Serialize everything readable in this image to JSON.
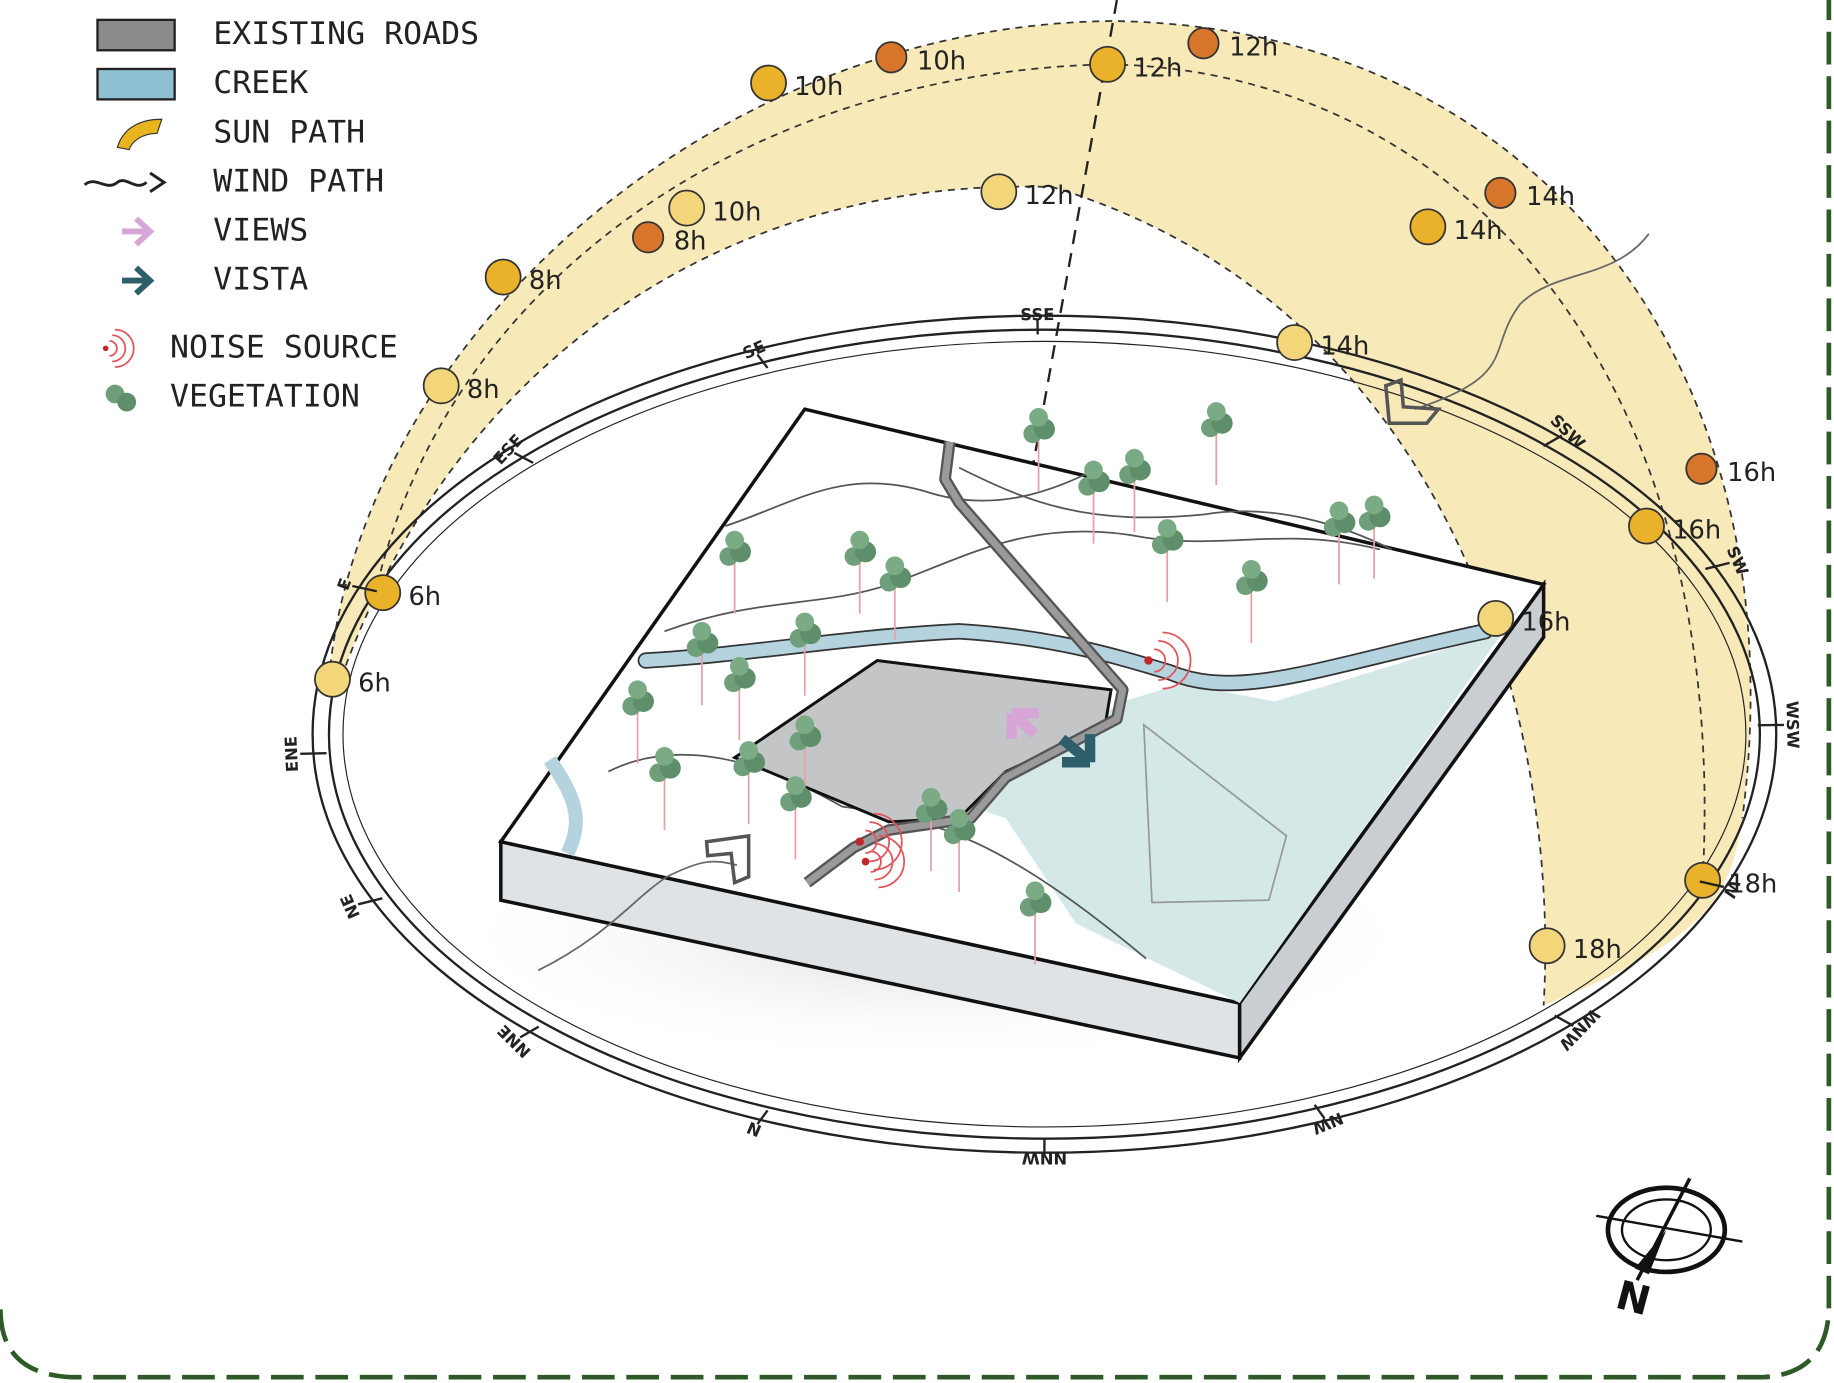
{
  "legend": [
    {
      "label": "EXISTING ROADS"
    },
    {
      "label": "CREEK"
    },
    {
      "label": "SUN PATH"
    },
    {
      "label": "WIND PATH"
    },
    {
      "label": "VIEWS"
    },
    {
      "label": "VISTA"
    },
    {
      "label": "NOISE SOURCE"
    },
    {
      "label": "VEGETATION"
    }
  ],
  "sun_path": {
    "inner": [
      "6h",
      "8h",
      "10h",
      "12h",
      "14h",
      "16h",
      "18h"
    ],
    "middle": [
      "6h",
      "8h",
      "10h",
      "12h",
      "14h",
      "16h",
      "18h"
    ],
    "outer": [
      "8h",
      "10h",
      "12h",
      "14h",
      "16h"
    ]
  },
  "compass_points": [
    "SSE",
    "SE",
    "ESE",
    "E",
    "ENE",
    "NE",
    "NNE",
    "N",
    "NNW",
    "NW",
    "WNW",
    "W",
    "WSW",
    "SW",
    "SSW"
  ],
  "north": "N"
}
